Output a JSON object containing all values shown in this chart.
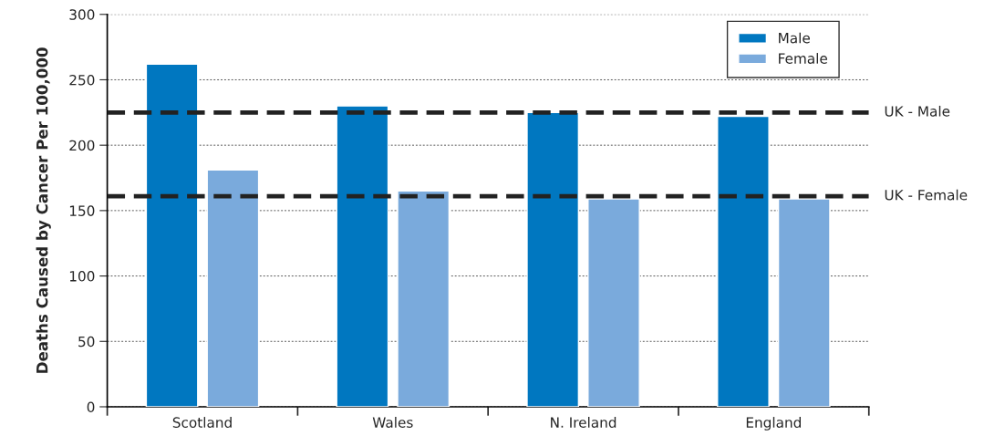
{
  "chart_data": {
    "type": "bar",
    "ylabel": "Deaths Caused by Cancer Per 100,000",
    "categories": [
      "Scotland",
      "Wales",
      "N. Ireland",
      "England"
    ],
    "series": [
      {
        "name": "Male",
        "color": "#0077c0",
        "values": [
          262,
          230,
          225,
          222
        ]
      },
      {
        "name": "Female",
        "color": "#7aaadc",
        "values": [
          181,
          165,
          159,
          159
        ]
      }
    ],
    "ylim": [
      0,
      300
    ],
    "yticks": [
      0,
      50,
      100,
      150,
      200,
      250,
      300
    ],
    "grid": "y",
    "legend": "top right",
    "ref_lines": [
      {
        "axis": "y",
        "value": 225,
        "label": "UK - Male",
        "color": "#222222",
        "line_style": "dashed"
      },
      {
        "axis": "y",
        "value": 161,
        "label": "UK - Female",
        "color": "#222222",
        "line_style": "dashed"
      }
    ]
  }
}
